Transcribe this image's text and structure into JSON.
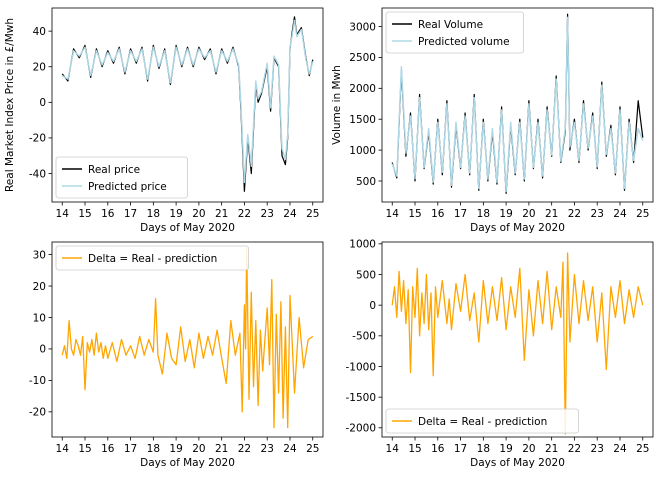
{
  "figure": {
    "x_ticks": [
      14,
      15,
      16,
      17,
      18,
      19,
      20,
      21,
      22,
      23,
      24,
      25
    ],
    "x_range": [
      13.55,
      25.45
    ]
  },
  "chart_data": [
    {
      "id": "price",
      "type": "line",
      "xlabel": "Days of May 2020",
      "ylabel": "Real Market Index Price in £/Mwh",
      "ylim": [
        -56,
        53
      ],
      "yticks": [
        -40,
        -20,
        0,
        20,
        40
      ],
      "legend": "lower-left",
      "series": [
        {
          "name": "Real price",
          "color": "#000000",
          "width": 1.2,
          "x": [
            14.0,
            14.25,
            14.5,
            14.75,
            15.0,
            15.25,
            15.5,
            15.75,
            16.0,
            16.25,
            16.5,
            16.75,
            17.0,
            17.25,
            17.5,
            17.75,
            18.0,
            18.25,
            18.5,
            18.75,
            19.0,
            19.25,
            19.5,
            19.75,
            20.0,
            20.25,
            20.5,
            20.75,
            21.0,
            21.25,
            21.5,
            21.75,
            21.85,
            22.0,
            22.15,
            22.3,
            22.5,
            22.6,
            22.75,
            23.0,
            23.15,
            23.3,
            23.5,
            23.65,
            23.8,
            23.9,
            24.0,
            24.1,
            24.2,
            24.3,
            24.5,
            24.7,
            24.85,
            25.0
          ],
          "y": [
            16,
            12,
            30,
            25,
            32,
            14,
            30,
            20,
            29,
            22,
            31,
            16,
            30,
            22,
            31,
            12,
            32,
            19,
            30,
            10,
            32,
            20,
            31,
            20,
            31,
            24,
            30,
            16,
            30,
            22,
            31,
            20,
            -5,
            -50,
            -20,
            -40,
            10,
            0,
            5,
            20,
            -5,
            25,
            20,
            -30,
            -35,
            -20,
            30,
            40,
            48,
            38,
            42,
            25,
            15,
            24
          ]
        },
        {
          "name": "Predicted price",
          "color": "#add8e6",
          "width": 1.4,
          "x": [
            14.0,
            14.25,
            14.5,
            14.75,
            15.0,
            15.25,
            15.5,
            15.75,
            16.0,
            16.25,
            16.5,
            16.75,
            17.0,
            17.25,
            17.5,
            17.75,
            18.0,
            18.25,
            18.5,
            18.75,
            19.0,
            19.25,
            19.5,
            19.75,
            20.0,
            20.25,
            20.5,
            20.75,
            21.0,
            21.25,
            21.5,
            21.75,
            21.85,
            22.0,
            22.15,
            22.3,
            22.5,
            22.6,
            22.75,
            23.0,
            23.15,
            23.3,
            23.5,
            23.65,
            23.8,
            23.9,
            24.0,
            24.1,
            24.2,
            24.3,
            24.5,
            24.7,
            24.85,
            25.0
          ],
          "y": [
            15,
            13,
            29,
            26,
            31,
            15,
            29,
            21,
            28,
            23,
            30,
            17,
            29,
            23,
            30,
            13,
            31,
            20,
            29,
            11,
            31,
            21,
            30,
            21,
            30,
            25,
            29,
            17,
            29,
            23,
            30,
            21,
            -2,
            -45,
            -18,
            -36,
            12,
            2,
            6,
            22,
            -3,
            26,
            21,
            -26,
            -32,
            -18,
            31,
            38,
            46,
            37,
            41,
            24,
            16,
            23
          ]
        }
      ]
    },
    {
      "id": "volume",
      "type": "line",
      "xlabel": "Days of May 2020",
      "ylabel": "Volume in Mwh",
      "ylim": [
        160,
        3300
      ],
      "yticks": [
        500,
        1000,
        1500,
        2000,
        2500,
        3000
      ],
      "legend": "top-left",
      "series": [
        {
          "name": "Real Volume",
          "color": "#000000",
          "width": 1.2,
          "x": [
            14.0,
            14.2,
            14.4,
            14.6,
            14.8,
            15.0,
            15.2,
            15.4,
            15.6,
            15.8,
            16.0,
            16.2,
            16.4,
            16.6,
            16.8,
            17.0,
            17.2,
            17.4,
            17.6,
            17.8,
            18.0,
            18.2,
            18.4,
            18.6,
            18.8,
            19.0,
            19.2,
            19.4,
            19.6,
            19.8,
            20.0,
            20.2,
            20.4,
            20.6,
            20.8,
            21.0,
            21.2,
            21.4,
            21.6,
            21.7,
            21.8,
            22.0,
            22.2,
            22.4,
            22.6,
            22.8,
            23.0,
            23.2,
            23.4,
            23.6,
            23.8,
            24.0,
            24.2,
            24.4,
            24.6,
            24.8,
            25.0
          ],
          "y": [
            800,
            550,
            2300,
            900,
            1600,
            500,
            1900,
            700,
            1300,
            450,
            1500,
            600,
            1800,
            400,
            1400,
            700,
            1600,
            600,
            1900,
            350,
            1500,
            500,
            1300,
            450,
            1700,
            300,
            1400,
            600,
            1500,
            500,
            1800,
            700,
            1500,
            550,
            1700,
            900,
            2200,
            800,
            1300,
            3200,
            1000,
            1500,
            800,
            1800,
            1000,
            1600,
            700,
            2100,
            900,
            1400,
            600,
            1700,
            350,
            1500,
            800,
            1800,
            1200
          ]
        },
        {
          "name": "Predicted volume",
          "color": "#add8e6",
          "width": 1.4,
          "x": [
            14.0,
            14.2,
            14.4,
            14.6,
            14.8,
            15.0,
            15.2,
            15.4,
            15.6,
            15.8,
            16.0,
            16.2,
            16.4,
            16.6,
            16.8,
            17.0,
            17.2,
            17.4,
            17.6,
            17.8,
            18.0,
            18.2,
            18.4,
            18.6,
            18.8,
            19.0,
            19.2,
            19.4,
            19.6,
            19.8,
            20.0,
            20.2,
            20.4,
            20.6,
            20.8,
            21.0,
            21.2,
            21.4,
            21.6,
            21.7,
            21.8,
            22.0,
            22.2,
            22.4,
            22.6,
            22.8,
            23.0,
            23.2,
            23.4,
            23.6,
            23.8,
            24.0,
            24.2,
            24.4,
            24.6,
            24.8,
            25.0
          ],
          "y": [
            780,
            580,
            2350,
            950,
            1550,
            540,
            1850,
            720,
            1350,
            480,
            1450,
            640,
            1750,
            430,
            1450,
            720,
            1550,
            630,
            1850,
            380,
            1450,
            530,
            1350,
            480,
            1650,
            330,
            1450,
            630,
            1450,
            530,
            1750,
            720,
            1450,
            580,
            1650,
            920,
            2150,
            820,
            1350,
            3150,
            1050,
            1450,
            830,
            1750,
            1030,
            1550,
            730,
            2050,
            930,
            1350,
            630,
            1650,
            380,
            1450,
            830,
            1350,
            1150
          ]
        }
      ]
    },
    {
      "id": "price-delta",
      "type": "line",
      "xlabel": "Days of May 2020",
      "ylabel": "",
      "ylim": [
        -28,
        34
      ],
      "yticks": [
        -20,
        -10,
        0,
        10,
        20,
        30
      ],
      "legend": "top-left",
      "series": [
        {
          "name": "Delta = Real - prediction",
          "color": "#ffa500",
          "width": 1.3,
          "x": [
            14.0,
            14.1,
            14.2,
            14.3,
            14.4,
            14.5,
            14.6,
            14.7,
            14.8,
            14.9,
            15.0,
            15.1,
            15.2,
            15.3,
            15.4,
            15.5,
            15.6,
            15.7,
            15.8,
            15.9,
            16.0,
            16.2,
            16.4,
            16.6,
            16.8,
            17.0,
            17.2,
            17.4,
            17.6,
            17.8,
            18.0,
            18.1,
            18.2,
            18.4,
            18.6,
            18.8,
            19.0,
            19.2,
            19.4,
            19.6,
            19.8,
            20.0,
            20.2,
            20.4,
            20.6,
            20.8,
            21.0,
            21.2,
            21.4,
            21.6,
            21.8,
            21.9,
            22.0,
            22.05,
            22.1,
            22.2,
            22.3,
            22.4,
            22.5,
            22.6,
            22.7,
            22.8,
            22.9,
            23.0,
            23.1,
            23.2,
            23.3,
            23.4,
            23.5,
            23.6,
            23.7,
            23.8,
            23.9,
            24.0,
            24.2,
            24.4,
            24.6,
            24.8,
            25.0
          ],
          "y": [
            -2,
            1,
            -3,
            9,
            0,
            -2,
            3,
            1,
            -2,
            4,
            -13,
            2,
            -1,
            3,
            -2,
            5,
            -1,
            2,
            -3,
            1,
            -3,
            2,
            -4,
            3,
            -2,
            1,
            -3,
            4,
            -2,
            3,
            -1,
            16,
            -2,
            -8,
            5,
            -3,
            -5,
            7,
            -4,
            3,
            -6,
            5,
            -3,
            4,
            -2,
            6,
            -3,
            -11,
            9,
            -2,
            5,
            -20,
            14,
            0,
            32,
            -16,
            18,
            -12,
            9,
            -18,
            6,
            -7,
            3,
            13,
            -5,
            22,
            -25,
            11,
            -14,
            15,
            -22,
            7,
            -25,
            17,
            -14,
            10,
            -6,
            3,
            4
          ]
        }
      ]
    },
    {
      "id": "volume-delta",
      "type": "line",
      "xlabel": "Days of May 2020",
      "ylabel": "",
      "ylim": [
        -2150,
        1030
      ],
      "yticks": [
        -2000,
        -1500,
        -1000,
        -500,
        0,
        500,
        1000
      ],
      "legend": "lower-left",
      "series": [
        {
          "name": "Delta = Real - prediction",
          "color": "#ffa500",
          "width": 1.3,
          "x": [
            14.0,
            14.1,
            14.2,
            14.3,
            14.4,
            14.5,
            14.6,
            14.7,
            14.8,
            14.9,
            15.0,
            15.1,
            15.2,
            15.3,
            15.4,
            15.5,
            15.6,
            15.7,
            15.8,
            15.9,
            16.0,
            16.2,
            16.4,
            16.5,
            16.6,
            16.8,
            17.0,
            17.2,
            17.4,
            17.6,
            17.8,
            18.0,
            18.2,
            18.4,
            18.6,
            18.8,
            19.0,
            19.2,
            19.4,
            19.6,
            19.8,
            20.0,
            20.2,
            20.4,
            20.6,
            20.8,
            21.0,
            21.2,
            21.4,
            21.5,
            21.6,
            21.7,
            21.8,
            22.0,
            22.2,
            22.4,
            22.6,
            22.8,
            23.0,
            23.2,
            23.4,
            23.6,
            23.8,
            24.0,
            24.2,
            24.4,
            24.6,
            24.8,
            25.0
          ],
          "y": [
            0,
            300,
            -200,
            550,
            -100,
            400,
            -300,
            250,
            -1100,
            300,
            -200,
            600,
            -500,
            200,
            -300,
            500,
            -400,
            200,
            -1150,
            300,
            -200,
            400,
            -300,
            100,
            -400,
            350,
            -100,
            500,
            -250,
            200,
            -600,
            400,
            -300,
            300,
            -250,
            450,
            -400,
            300,
            -200,
            600,
            -900,
            250,
            -500,
            400,
            -300,
            550,
            -400,
            300,
            -200,
            700,
            -2100,
            850,
            -600,
            500,
            -300,
            400,
            -250,
            300,
            -600,
            200,
            -1050,
            300,
            -200,
            400,
            -300,
            250,
            -200,
            300,
            0
          ]
        }
      ]
    }
  ]
}
